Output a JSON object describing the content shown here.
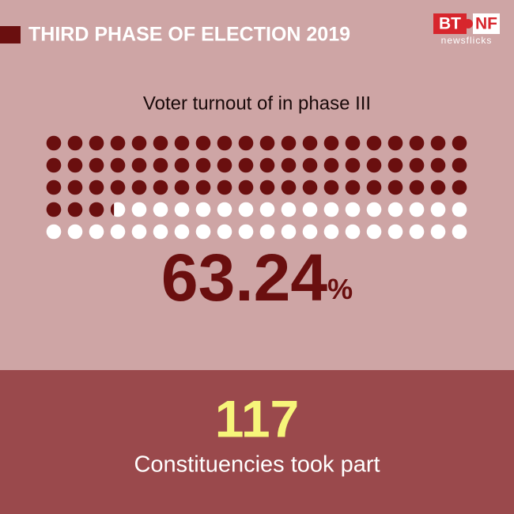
{
  "header": {
    "title": "THIRD PHASE OF ELECTION 2019",
    "logo": {
      "left": "BT",
      "right": "NF",
      "sub": "newsflicks"
    }
  },
  "chart_data": {
    "type": "waffle",
    "title": "Voter turnout of in phase III",
    "value": 63.24,
    "unit": "%",
    "ylim": [
      0,
      100
    ],
    "color": "#6a0f0f",
    "empty_color": "#ffffff"
  },
  "footer": {
    "value": 117,
    "label": "Constituencies took part"
  }
}
